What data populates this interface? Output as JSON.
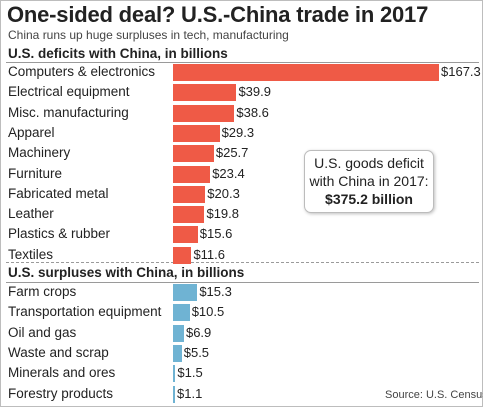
{
  "title": "One-sided deal? U.S.-China trade in 2017",
  "subtitle": "China runs up huge surpluses in tech, manufacturing",
  "source": "Source: U.S. Census",
  "callout": {
    "line1": "U.S. goods deficit",
    "line2": "with China in 2017:",
    "amount": "$375.2 billion"
  },
  "colors": {
    "deficit": "#ef5a46",
    "surplus": "#6fb3d3"
  },
  "chart_data": [
    {
      "type": "bar",
      "orientation": "horizontal",
      "title": "U.S. deficits with China, in billions",
      "categories": [
        "Computers & electronics",
        "Electrical equipment",
        "Misc. manufacturing",
        "Apparel",
        "Machinery",
        "Furniture",
        "Fabricated metal",
        "Leather",
        "Plastics & rubber",
        "Textiles"
      ],
      "values": [
        167.3,
        39.9,
        38.6,
        29.3,
        25.7,
        23.4,
        20.3,
        19.8,
        15.6,
        11.6
      ],
      "labels": [
        "$167.3",
        "$39.9",
        "$38.6",
        "$29.3",
        "$25.7",
        "$23.4",
        "$20.3",
        "$19.8",
        "$15.6",
        "$11.6"
      ],
      "color": "#ef5a46"
    },
    {
      "type": "bar",
      "orientation": "horizontal",
      "title": "U.S. surpluses with China, in billions",
      "categories": [
        "Farm crops",
        "Transportation equipment",
        "Oil and gas",
        "Waste and scrap",
        "Minerals and ores",
        "Forestry products"
      ],
      "values": [
        15.3,
        10.5,
        6.9,
        5.5,
        1.5,
        1.1
      ],
      "labels": [
        "$15.3",
        "$10.5",
        "$6.9",
        "$5.5",
        "$1.5",
        "$1.1"
      ],
      "color": "#6fb3d3"
    }
  ]
}
